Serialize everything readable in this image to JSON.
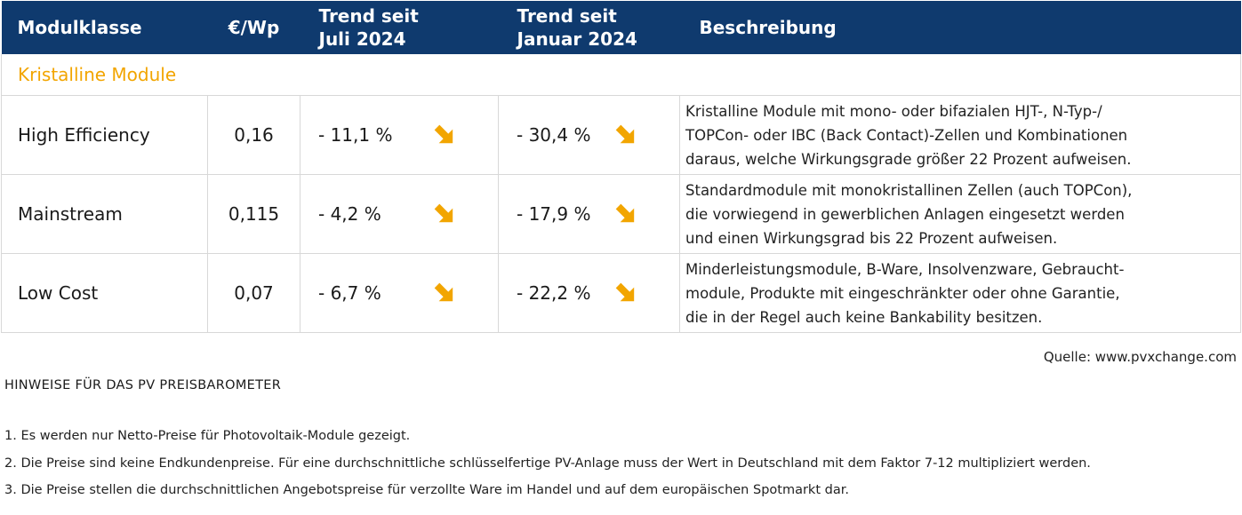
{
  "table": {
    "headers": {
      "class": "Modulklasse",
      "price": "€/Wp",
      "trend_july_1": "Trend seit",
      "trend_july_2": "Juli 2024",
      "trend_jan_1": "Trend seit",
      "trend_jan_2": "Januar 2024",
      "description": "Beschreibung"
    },
    "section": "Kristalline Module",
    "rows": [
      {
        "name": "High Efficiency",
        "price": "0,16",
        "trend_july": "- 11,1 %",
        "trend_jan": "- 30,4 %",
        "desc_1": "Kristalline Module mit mono- oder bifazialen HJT-, N-Typ-/",
        "desc_2": "TOPCon- oder IBC (Back Contact)-Zellen und Kombinationen",
        "desc_3": "daraus, welche Wirkungsgrade größer 22 Prozent aufweisen."
      },
      {
        "name": "Mainstream",
        "price": "0,115",
        "trend_july": "- 4,2 %",
        "trend_jan": "- 17,9 %",
        "desc_1": "Standardmodule mit monokristallinen Zellen (auch TOPCon),",
        "desc_2": "die vorwiegend in gewerblichen Anlagen eingesetzt werden",
        "desc_3": "und einen Wirkungsgrad bis 22 Prozent aufweisen."
      },
      {
        "name": "Low Cost",
        "price": "0,07",
        "trend_july": "- 6,7 %",
        "trend_jan": "- 22,2 %",
        "desc_1": "Minderleistungsmodule, B-Ware, Insolvenzware, Gebraucht-",
        "desc_2": "module, Produkte mit eingeschränkter oder ohne Garantie,",
        "desc_3": "die in der Regel auch keine Bankability besitzen."
      }
    ],
    "trend_icon": "arrow-down-right-icon"
  },
  "source": "Quelle: www.pvxchange.com",
  "notes": {
    "title": "HINWEISE FÜR DAS PV PREISBAROMETER",
    "items": [
      "1.  Es werden nur Netto-Preise für Photovoltaik-Module gezeigt.",
      "2. Die Preise sind keine Endkundenpreise. Für eine durchschnittliche schlüsselfertige PV-Anlage muss der Wert in Deutschland mit dem Faktor 7-12 multipliziert werden.",
      "3. Die Preise stellen die durchschnittlichen Angebotspreise für verzollte Ware im Handel und auf dem europäischen Spotmarkt dar."
    ]
  },
  "colors": {
    "header_bg": "#0f3a6e",
    "section_text": "#f2a500",
    "arrow": "#f2a500",
    "border": "#d8d8d8"
  }
}
